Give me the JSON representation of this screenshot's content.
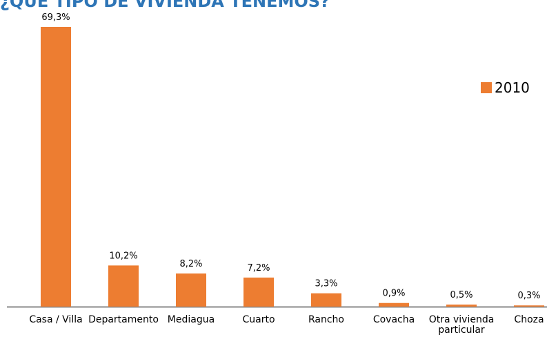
{
  "chart_data": {
    "type": "bar",
    "title": "¿QUÉ TIPO DE VIVIENDA TENEMOS?",
    "categories": [
      "Casa / Villa",
      "Departamento",
      "Mediagua",
      "Cuarto",
      "Rancho",
      "Covacha",
      "Otra vivienda particular",
      "Choza"
    ],
    "series": [
      {
        "name": "2010",
        "color": "#ed7d31",
        "values": [
          69.3,
          10.2,
          8.2,
          7.2,
          3.3,
          0.9,
          0.5,
          0.3
        ],
        "value_labels": [
          "69,3%",
          "10,2%",
          "8,2%",
          "7,2%",
          "3,3%",
          "0,9%",
          "0,5%",
          "0,3%"
        ]
      }
    ],
    "legend": "right"
  }
}
